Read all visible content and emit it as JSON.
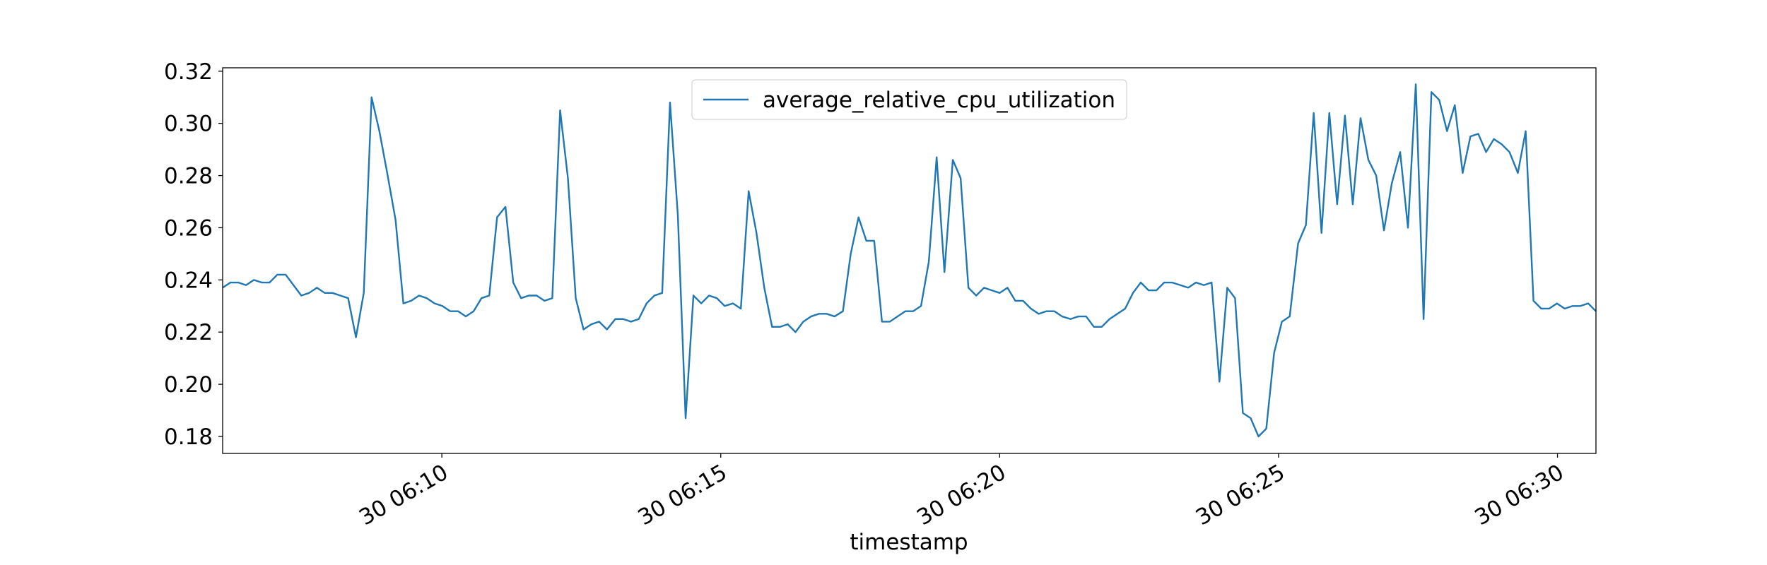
{
  "chart_data": {
    "type": "line",
    "x_label": "timestamp",
    "x": [
      366.07,
      366.21,
      366.35,
      366.49,
      366.63,
      366.77,
      366.91,
      367.05,
      367.2,
      367.34,
      367.48,
      367.62,
      367.76,
      367.9,
      368.04,
      368.18,
      368.32,
      368.46,
      368.6,
      368.74,
      368.88,
      369.02,
      369.17,
      369.31,
      369.45,
      369.59,
      369.73,
      369.87,
      370.01,
      370.15,
      370.29,
      370.43,
      370.57,
      370.71,
      370.85,
      370.99,
      371.14,
      371.28,
      371.42,
      371.56,
      371.7,
      371.84,
      371.98,
      372.12,
      372.26,
      372.4,
      372.54,
      372.68,
      372.82,
      372.96,
      373.11,
      373.25,
      373.39,
      373.53,
      373.67,
      373.81,
      373.95,
      374.09,
      374.23,
      374.37,
      374.51,
      374.65,
      374.79,
      374.93,
      375.07,
      375.22,
      375.36,
      375.5,
      375.64,
      375.78,
      375.92,
      376.06,
      376.2,
      376.34,
      376.48,
      376.62,
      376.76,
      376.9,
      377.04,
      377.19,
      377.33,
      377.47,
      377.61,
      377.75,
      377.89,
      378.03,
      378.17,
      378.31,
      378.45,
      378.59,
      378.73,
      378.87,
      379.01,
      379.16,
      379.3,
      379.44,
      379.58,
      379.72,
      379.86,
      380.0,
      380.14,
      380.28,
      380.42,
      380.56,
      380.7,
      380.84,
      380.98,
      381.12,
      381.27,
      381.41,
      381.55,
      381.69,
      381.83,
      381.97,
      382.11,
      382.25,
      382.39,
      382.53,
      382.67,
      382.81,
      382.95,
      383.09,
      383.24,
      383.38,
      383.52,
      383.66,
      383.8,
      383.94,
      384.08,
      384.22,
      384.36,
      384.5,
      384.64,
      384.78,
      384.92,
      385.06,
      385.2,
      385.35,
      385.49,
      385.63,
      385.77,
      385.91,
      386.05,
      386.19,
      386.33,
      386.47,
      386.61,
      386.75,
      386.89,
      387.03,
      387.18,
      387.32,
      387.46,
      387.6,
      387.74,
      387.88,
      388.02,
      388.16,
      388.3,
      388.44,
      388.58,
      388.72,
      388.86,
      389.0,
      389.14,
      389.29,
      389.43,
      389.57,
      389.71,
      389.85,
      389.99,
      390.13,
      390.27,
      390.41,
      390.55,
      390.69
    ],
    "series": [
      {
        "name": "average_relative_cpu_utilization",
        "color": "#1f77b4",
        "values": [
          0.237,
          0.239,
          0.239,
          0.238,
          0.24,
          0.239,
          0.239,
          0.242,
          0.242,
          0.238,
          0.234,
          0.235,
          0.237,
          0.235,
          0.235,
          0.234,
          0.233,
          0.218,
          0.235,
          0.31,
          0.297,
          0.281,
          0.263,
          0.231,
          0.232,
          0.234,
          0.233,
          0.231,
          0.23,
          0.228,
          0.228,
          0.226,
          0.228,
          0.233,
          0.234,
          0.264,
          0.268,
          0.239,
          0.233,
          0.234,
          0.234,
          0.232,
          0.233,
          0.305,
          0.279,
          0.233,
          0.221,
          0.223,
          0.224,
          0.221,
          0.225,
          0.225,
          0.224,
          0.225,
          0.231,
          0.234,
          0.235,
          0.308,
          0.265,
          0.187,
          0.234,
          0.231,
          0.234,
          0.233,
          0.23,
          0.231,
          0.229,
          0.274,
          0.258,
          0.237,
          0.222,
          0.222,
          0.223,
          0.22,
          0.224,
          0.226,
          0.227,
          0.227,
          0.226,
          0.228,
          0.25,
          0.264,
          0.255,
          0.255,
          0.224,
          0.224,
          0.226,
          0.228,
          0.228,
          0.23,
          0.247,
          0.287,
          0.243,
          0.286,
          0.279,
          0.237,
          0.234,
          0.237,
          0.236,
          0.235,
          0.237,
          0.232,
          0.232,
          0.229,
          0.227,
          0.228,
          0.228,
          0.226,
          0.225,
          0.226,
          0.226,
          0.222,
          0.222,
          0.225,
          0.227,
          0.229,
          0.235,
          0.239,
          0.236,
          0.236,
          0.239,
          0.239,
          0.238,
          0.237,
          0.239,
          0.238,
          0.239,
          0.201,
          0.237,
          0.233,
          0.189,
          0.187,
          0.18,
          0.183,
          0.212,
          0.224,
          0.226,
          0.254,
          0.261,
          0.304,
          0.258,
          0.304,
          0.269,
          0.303,
          0.269,
          0.302,
          0.286,
          0.28,
          0.259,
          0.277,
          0.289,
          0.26,
          0.315,
          0.225,
          0.312,
          0.309,
          0.297,
          0.307,
          0.281,
          0.295,
          0.296,
          0.289,
          0.294,
          0.292,
          0.289,
          0.281,
          0.297,
          0.232,
          0.229,
          0.229,
          0.231,
          0.229,
          0.23,
          0.23,
          0.231,
          0.228
        ]
      }
    ],
    "xlim": [
      366.07,
      390.69
    ],
    "xticks": [
      {
        "value": 370,
        "label": "30 06:10"
      },
      {
        "value": 375,
        "label": "30 06:15"
      },
      {
        "value": 380,
        "label": "30 06:20"
      },
      {
        "value": 385,
        "label": "30 06:25"
      },
      {
        "value": 390,
        "label": "30 06:30"
      }
    ],
    "ylim": [
      0.1735,
      0.3213
    ],
    "yticks": [
      {
        "value": 0.18,
        "label": "0.18"
      },
      {
        "value": 0.2,
        "label": "0.20"
      },
      {
        "value": 0.22,
        "label": "0.22"
      },
      {
        "value": 0.24,
        "label": "0.24"
      },
      {
        "value": 0.26,
        "label": "0.26"
      },
      {
        "value": 0.28,
        "label": "0.28"
      },
      {
        "value": 0.3,
        "label": "0.30"
      },
      {
        "value": 0.32,
        "label": "0.32"
      }
    ],
    "legend": "upper center"
  }
}
